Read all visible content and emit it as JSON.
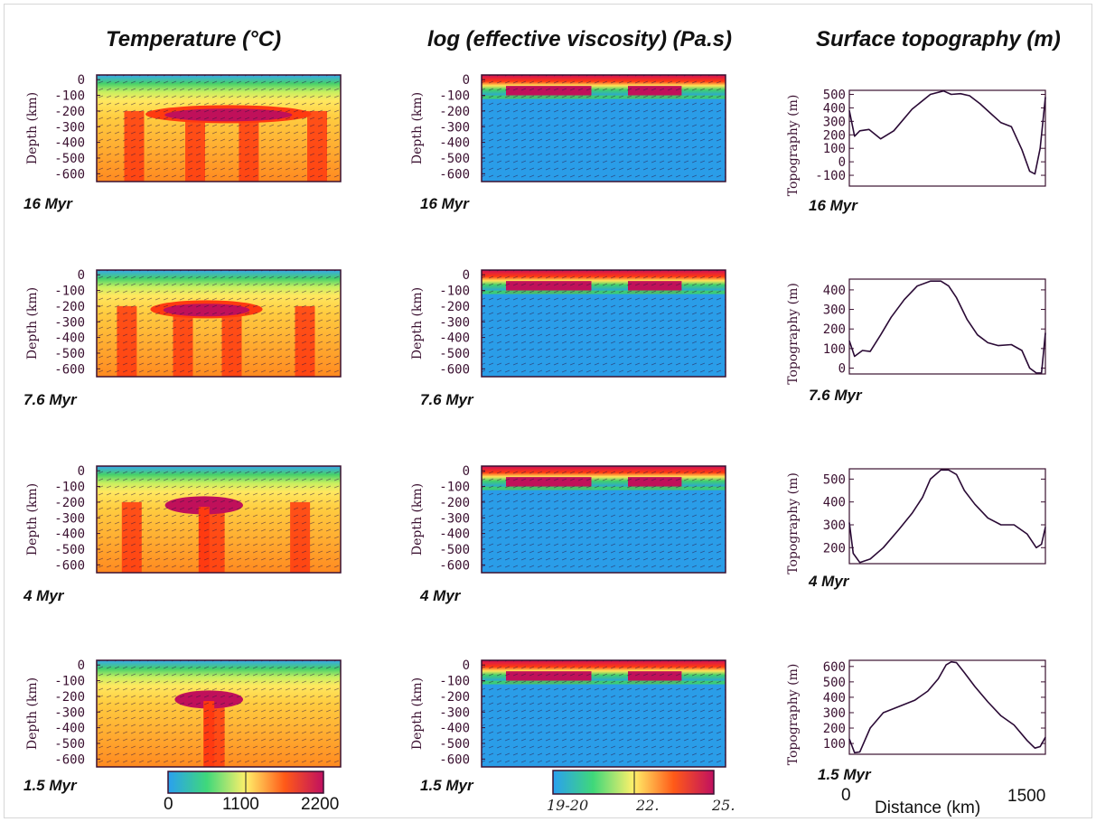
{
  "columns": {
    "temperature": "Temperature  (°C)",
    "viscosity": "log (effective viscosity) (Pa.s)",
    "topography": "Surface topography  (m)"
  },
  "axis_labels": {
    "depth": "Depth (km)",
    "topography": "Topography (m)",
    "distance": "Distance  (km)"
  },
  "time_labels": [
    "16 Myr",
    "7.6 Myr",
    "4 Myr",
    "1.5 Myr"
  ],
  "colorbars": {
    "temperature": {
      "min_label": "0",
      "mid_label": "1100",
      "max_label": "2200"
    },
    "viscosity": {
      "min_label": "19-20",
      "mid_label": "22.",
      "max_label": "25."
    }
  },
  "distance_axis": {
    "min_label": "0",
    "max_label": "1500"
  },
  "colors": {
    "cold": "#2a9de8",
    "cool": "#3fd06a",
    "warm": "#ffe45a",
    "hot": "#ff3a10",
    "plume": "#c0105a",
    "curve": "#2a0a35"
  },
  "chart_data": [
    {
      "type": "heatmap",
      "panel": "temperature",
      "time": "16 Myr",
      "y_ticks": [
        "0",
        "-100",
        "-200",
        "-300",
        "-400",
        "-500",
        "-600"
      ],
      "ylim": [
        -650,
        30
      ],
      "colorbar_range": [
        0,
        2200
      ]
    },
    {
      "type": "heatmap",
      "panel": "temperature",
      "time": "7.6 Myr",
      "y_ticks": [
        "0",
        "-100",
        "-200",
        "-300",
        "-400",
        "-500",
        "-600"
      ],
      "ylim": [
        -650,
        30
      ],
      "colorbar_range": [
        0,
        2200
      ]
    },
    {
      "type": "heatmap",
      "panel": "temperature",
      "time": "4 Myr",
      "y_ticks": [
        "0",
        "-100",
        "-200",
        "-300",
        "-400",
        "-500",
        "-600"
      ],
      "ylim": [
        -650,
        30
      ],
      "colorbar_range": [
        0,
        2200
      ]
    },
    {
      "type": "heatmap",
      "panel": "temperature",
      "time": "1.5 Myr",
      "y_ticks": [
        "0",
        "-100",
        "-200",
        "-300",
        "-400",
        "-500",
        "-600"
      ],
      "ylim": [
        -650,
        30
      ],
      "colorbar_range": [
        0,
        2200
      ]
    },
    {
      "type": "heatmap",
      "panel": "viscosity",
      "time": "16 Myr",
      "y_ticks": [
        "0",
        "-100",
        "-200",
        "-300",
        "-400",
        "-500",
        "-600"
      ],
      "ylim": [
        -650,
        30
      ]
    },
    {
      "type": "heatmap",
      "panel": "viscosity",
      "time": "7.6 Myr",
      "y_ticks": [
        "0",
        "-100",
        "-200",
        "-300",
        "-400",
        "-500",
        "-600"
      ],
      "ylim": [
        -650,
        30
      ]
    },
    {
      "type": "heatmap",
      "panel": "viscosity",
      "time": "4 Myr",
      "y_ticks": [
        "0",
        "-100",
        "-200",
        "-300",
        "-400",
        "-500",
        "-600"
      ],
      "ylim": [
        -650,
        30
      ]
    },
    {
      "type": "heatmap",
      "panel": "viscosity",
      "time": "1.5 Myr",
      "y_ticks": [
        "0",
        "-100",
        "-200",
        "-300",
        "-400",
        "-500",
        "-600"
      ],
      "ylim": [
        -650,
        30
      ]
    },
    {
      "type": "line",
      "panel": "topography",
      "time": "16 Myr",
      "ylim": [
        -180,
        530
      ],
      "y_ticks": [
        500,
        400,
        300,
        200,
        100,
        0,
        -100
      ],
      "x": [
        0,
        40,
        80,
        150,
        240,
        340,
        480,
        620,
        720,
        780,
        850,
        920,
        1000,
        1080,
        1160,
        1240,
        1320,
        1380,
        1420,
        1460,
        1500
      ],
      "y": [
        380,
        190,
        230,
        240,
        170,
        230,
        390,
        500,
        525,
        500,
        505,
        490,
        430,
        360,
        290,
        260,
        90,
        -70,
        -90,
        100,
        480
      ]
    },
    {
      "type": "line",
      "panel": "topography",
      "time": "7.6 Myr",
      "ylim": [
        -30,
        455
      ],
      "y_ticks": [
        400,
        300,
        200,
        100,
        0
      ],
      "x": [
        0,
        40,
        100,
        160,
        240,
        320,
        420,
        520,
        620,
        700,
        760,
        820,
        900,
        980,
        1060,
        1140,
        1240,
        1320,
        1380,
        1430,
        1470,
        1500
      ],
      "y": [
        140,
        60,
        90,
        85,
        170,
        260,
        350,
        420,
        445,
        445,
        420,
        360,
        250,
        170,
        130,
        115,
        120,
        90,
        0,
        -25,
        -25,
        180
      ]
    },
    {
      "type": "line",
      "panel": "topography",
      "time": "4 Myr",
      "ylim": [
        130,
        545
      ],
      "y_ticks": [
        500,
        400,
        300,
        200
      ],
      "x": [
        0,
        30,
        80,
        160,
        260,
        380,
        480,
        560,
        620,
        700,
        760,
        820,
        880,
        960,
        1060,
        1160,
        1260,
        1360,
        1430,
        1470,
        1500
      ],
      "y": [
        310,
        175,
        135,
        150,
        200,
        280,
        350,
        420,
        500,
        540,
        540,
        520,
        450,
        390,
        330,
        300,
        300,
        260,
        200,
        215,
        290
      ]
    },
    {
      "type": "line",
      "panel": "topography",
      "time": "1.5 Myr",
      "ylim": [
        30,
        640
      ],
      "y_ticks": [
        600,
        500,
        400,
        300,
        200,
        100
      ],
      "x": [
        0,
        40,
        80,
        160,
        260,
        380,
        500,
        600,
        680,
        740,
        780,
        820,
        880,
        960,
        1060,
        1160,
        1260,
        1360,
        1420,
        1460,
        1500
      ],
      "y": [
        130,
        40,
        45,
        200,
        300,
        340,
        380,
        440,
        520,
        610,
        630,
        625,
        560,
        470,
        370,
        280,
        220,
        120,
        70,
        80,
        140
      ]
    }
  ]
}
